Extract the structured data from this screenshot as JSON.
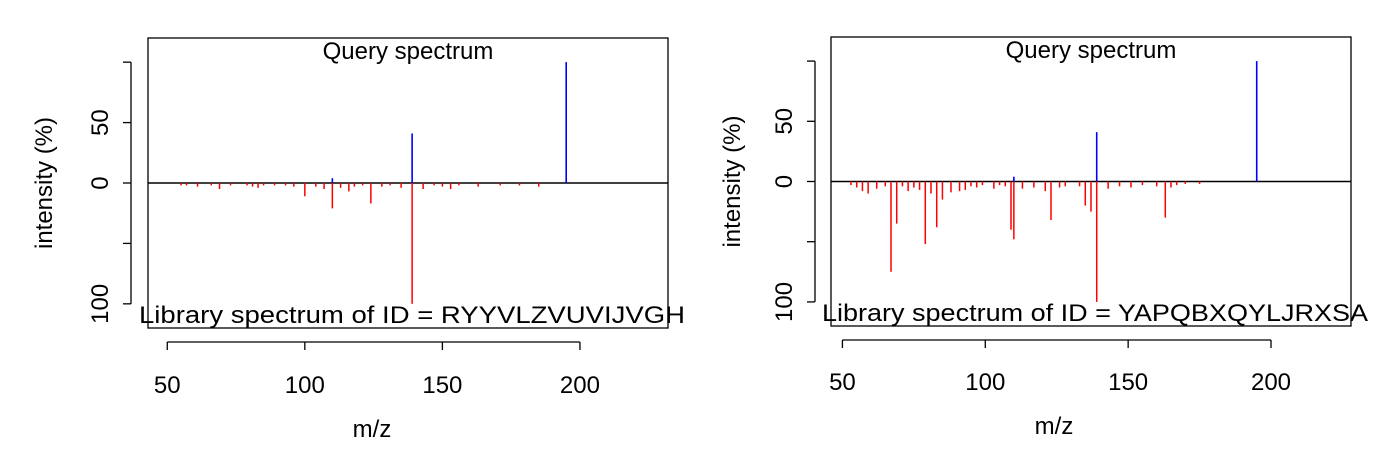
{
  "figure": {
    "colors": {
      "query": "#0000ff",
      "library": "#ff0000",
      "axis": "#000000",
      "background": "#ffffff"
    }
  },
  "chart_data": [
    {
      "type": "bar",
      "top_label": "Query spectrum",
      "bottom_label": "Library spectrum of ID = RYYVLZVUVIJVGH",
      "xlabel": "m/z",
      "ylabel": "intensity (%)",
      "xlim": [
        43,
        232
      ],
      "ylim": [
        -120,
        120
      ],
      "xticks": [
        50,
        100,
        150,
        200
      ],
      "yticks": [
        {
          "value": 100,
          "label": ""
        },
        {
          "value": 50,
          "label": "50"
        },
        {
          "value": 0,
          "label": "0"
        },
        {
          "value": -50,
          "label": ""
        },
        {
          "value": -100,
          "label": "100"
        }
      ],
      "series": [
        {
          "name": "Query spectrum",
          "color": "#0000ff",
          "x": [
            110,
            139,
            195
          ],
          "y": [
            4,
            41,
            100
          ]
        },
        {
          "name": "Library spectrum",
          "color": "#ff0000",
          "x": [
            55,
            57,
            61,
            66,
            69,
            73,
            79,
            81,
            83,
            85,
            89,
            93,
            96,
            100,
            104,
            107,
            110,
            113,
            116,
            118,
            121,
            124,
            128,
            131,
            135,
            139,
            143,
            147,
            150,
            153,
            156,
            163,
            171,
            178,
            185
          ],
          "y": [
            -2,
            -2,
            -3,
            -2,
            -5,
            -2,
            -2,
            -3,
            -4,
            -2,
            -2,
            -2,
            -3,
            -11,
            -3,
            -5,
            -21,
            -4,
            -7,
            -3,
            -2,
            -17,
            -3,
            -2,
            -4,
            -100,
            -5,
            -2,
            -3,
            -5,
            -2,
            -3,
            -2,
            -2,
            -3
          ]
        }
      ]
    },
    {
      "type": "bar",
      "top_label": "Query spectrum",
      "bottom_label": "Library spectrum of ID = YAPQBXQYLJRXSA",
      "xlabel": "m/z",
      "ylabel": "intensity (%)",
      "xlim": [
        46,
        228
      ],
      "ylim": [
        -120,
        120
      ],
      "xticks": [
        50,
        100,
        150,
        200
      ],
      "yticks": [
        {
          "value": 100,
          "label": ""
        },
        {
          "value": 50,
          "label": "50"
        },
        {
          "value": 0,
          "label": "0"
        },
        {
          "value": -50,
          "label": ""
        },
        {
          "value": -100,
          "label": "100"
        }
      ],
      "series": [
        {
          "name": "Query spectrum",
          "color": "#0000ff",
          "x": [
            110,
            139,
            195
          ],
          "y": [
            4,
            41,
            100
          ]
        },
        {
          "name": "Library spectrum",
          "color": "#ff0000",
          "x": [
            53,
            55,
            57,
            59,
            62,
            65,
            67,
            69,
            71,
            73,
            75,
            77,
            79,
            81,
            83,
            85,
            88,
            91,
            93,
            95,
            97,
            99,
            103,
            105,
            107,
            109,
            110,
            113,
            117,
            121,
            123,
            126,
            128,
            133,
            135,
            137,
            139,
            143,
            147,
            151,
            155,
            160,
            163,
            165,
            167,
            170,
            175
          ],
          "y": [
            -3,
            -5,
            -8,
            -10,
            -6,
            -4,
            -75,
            -35,
            -4,
            -8,
            -5,
            -7,
            -52,
            -10,
            -38,
            -15,
            -9,
            -8,
            -7,
            -4,
            -5,
            -3,
            -6,
            -3,
            -4,
            -40,
            -48,
            -6,
            -5,
            -8,
            -32,
            -5,
            -4,
            -4,
            -20,
            -25,
            -100,
            -6,
            -4,
            -5,
            -3,
            -4,
            -30,
            -5,
            -3,
            -2,
            -2
          ]
        }
      ]
    }
  ]
}
